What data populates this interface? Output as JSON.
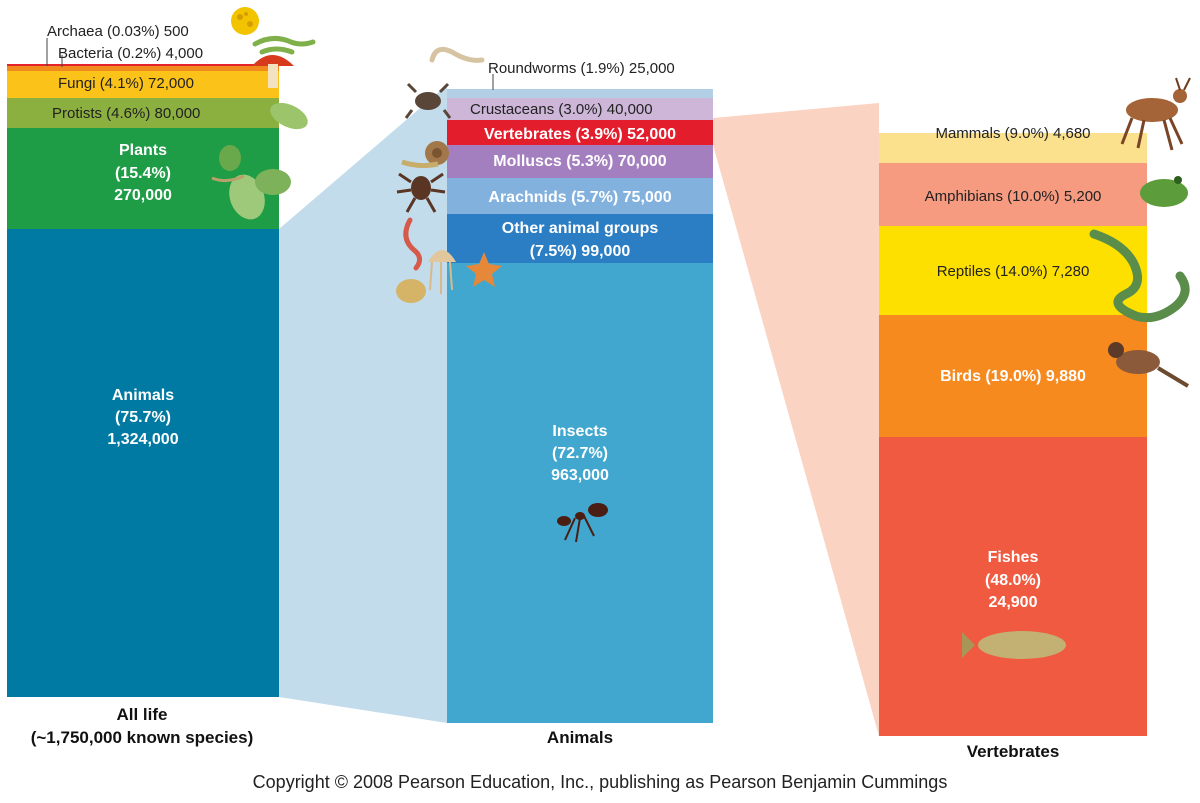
{
  "chart_data": [
    {
      "type": "stacked-bar",
      "label": "All life",
      "sublabel": "(~1,750,000 known species)",
      "segments": [
        {
          "name": "Archaea",
          "percent": "(0.03%)",
          "count": "500",
          "value": 500,
          "color": "#e4232a"
        },
        {
          "name": "Bacteria",
          "percent": "(0.2%)",
          "count": "4,000",
          "value": 4000,
          "color": "#f08a1c"
        },
        {
          "name": "Fungi",
          "percent": "(4.1%)",
          "count": "72,000",
          "value": 72000,
          "color": "#fbc21a"
        },
        {
          "name": "Protists",
          "percent": "(4.6%)",
          "count": "80,000",
          "value": 80000,
          "color": "#8cb040"
        },
        {
          "name": "Plants",
          "percent": "(15.4%)",
          "count": "270,000",
          "value": 270000,
          "color": "#1e9c46"
        },
        {
          "name": "Animals",
          "percent": "(75.7%)",
          "count": "1,324,000",
          "value": 1324000,
          "color": "#007aa2"
        }
      ]
    },
    {
      "type": "stacked-bar",
      "label": "Animals",
      "segments": [
        {
          "name": "Roundworms",
          "percent": "(1.9%)",
          "count": "25,000",
          "value": 25000,
          "color": "#b3cfe6"
        },
        {
          "name": "Crustaceans",
          "percent": "(3.0%)",
          "count": "40,000",
          "value": 40000,
          "color": "#cdb6d8"
        },
        {
          "name": "Vertebrates",
          "percent": "(3.9%)",
          "count": "52,000",
          "value": 52000,
          "color": "#e41d2d"
        },
        {
          "name": "Molluscs",
          "percent": "(5.3%)",
          "count": "70,000",
          "value": 70000,
          "color": "#a47fc0"
        },
        {
          "name": "Arachnids",
          "percent": "(5.7%)",
          "count": "75,000",
          "value": 75000,
          "color": "#83b1de"
        },
        {
          "name": "Other animal groups",
          "percent": "(7.5%)",
          "count": "99,000",
          "value": 99000,
          "color": "#2b7dc4"
        },
        {
          "name": "Insects",
          "percent": "(72.7%)",
          "count": "963,000",
          "value": 963000,
          "color": "#42a7cf"
        }
      ]
    },
    {
      "type": "stacked-bar",
      "label": "Vertebrates",
      "segments": [
        {
          "name": "Mammals",
          "percent": "(9.0%)",
          "count": "4,680",
          "value": 4680,
          "color": "#fbe18e"
        },
        {
          "name": "Amphibians",
          "percent": "(10.0%)",
          "count": "5,200",
          "value": 5200,
          "color": "#f69a80"
        },
        {
          "name": "Reptiles",
          "percent": "(14.0%)",
          "count": "7,280",
          "value": 7280,
          "color": "#fde000"
        },
        {
          "name": "Birds",
          "percent": "(19.0%)",
          "count": "9,880",
          "value": 9880,
          "color": "#f68a1f"
        },
        {
          "name": "Fishes",
          "percent": "(48.0%)",
          "count": "24,900",
          "value": 24900,
          "color": "#f05a40"
        }
      ]
    }
  ],
  "footer": "Copyright © 2008 Pearson Education, Inc., publishing as Pearson Benjamin Cummings"
}
